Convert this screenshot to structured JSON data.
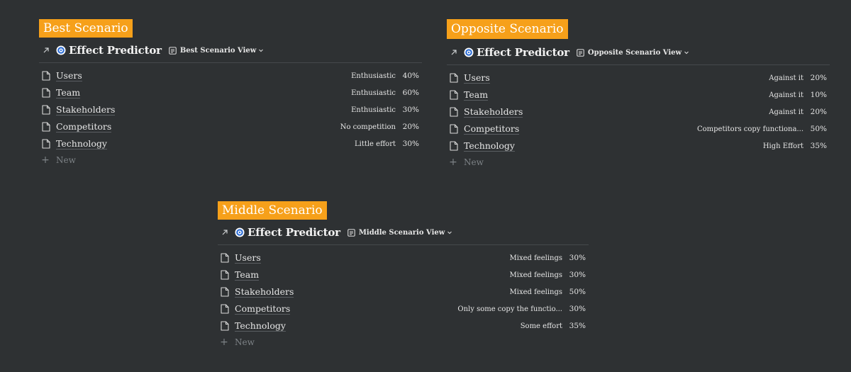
{
  "panels": [
    {
      "id": "best",
      "label": "Best Scenario",
      "db_title": "Effect Predictor",
      "view_label": "Best Scenario View",
      "new_label": "New",
      "rows": [
        {
          "name": "Users",
          "status": "Enthusiastic",
          "pct": "40%"
        },
        {
          "name": "Team",
          "status": "Enthusiastic",
          "pct": "60%"
        },
        {
          "name": "Stakeholders",
          "status": "Enthusiastic",
          "pct": "30%"
        },
        {
          "name": "Competitors",
          "status": "No competition",
          "pct": "20%"
        },
        {
          "name": "Technology",
          "status": "Little effort",
          "pct": "30%"
        }
      ]
    },
    {
      "id": "opposite",
      "label": "Opposite Scenario",
      "db_title": "Effect Predictor",
      "view_label": "Opposite Scenario View",
      "new_label": "New",
      "rows": [
        {
          "name": "Users",
          "status": "Against it",
          "pct": "20%"
        },
        {
          "name": "Team",
          "status": "Against it",
          "pct": "10%"
        },
        {
          "name": "Stakeholders",
          "status": "Against it",
          "pct": "20%"
        },
        {
          "name": "Competitors",
          "status": "Competitors copy functiona...",
          "pct": "50%"
        },
        {
          "name": "Technology",
          "status": "High Effort",
          "pct": "35%"
        }
      ]
    },
    {
      "id": "middle",
      "label": "Middle Scenario",
      "db_title": "Effect Predictor",
      "view_label": "Middle Scenario View",
      "new_label": "New",
      "rows": [
        {
          "name": "Users",
          "status": "Mixed feelings",
          "pct": "30%"
        },
        {
          "name": "Team",
          "status": "Mixed feelings",
          "pct": "30%"
        },
        {
          "name": "Stakeholders",
          "status": "Mixed feelings",
          "pct": "50%"
        },
        {
          "name": "Competitors",
          "status": "Only some copy the functio...",
          "pct": "30%"
        },
        {
          "name": "Technology",
          "status": "Some effort",
          "pct": "35%"
        }
      ]
    }
  ],
  "icons": {
    "link": "arrow-up-right-icon",
    "database": "target-icon",
    "view": "table-view-icon",
    "dropdown": "chevron-down-icon",
    "page": "page-icon",
    "add": "plus-icon"
  },
  "colors": {
    "background": "#2e3133",
    "label_bg": "#f6a01a",
    "label_text": "#ffffff",
    "target_blue": "#2f6fd6"
  }
}
